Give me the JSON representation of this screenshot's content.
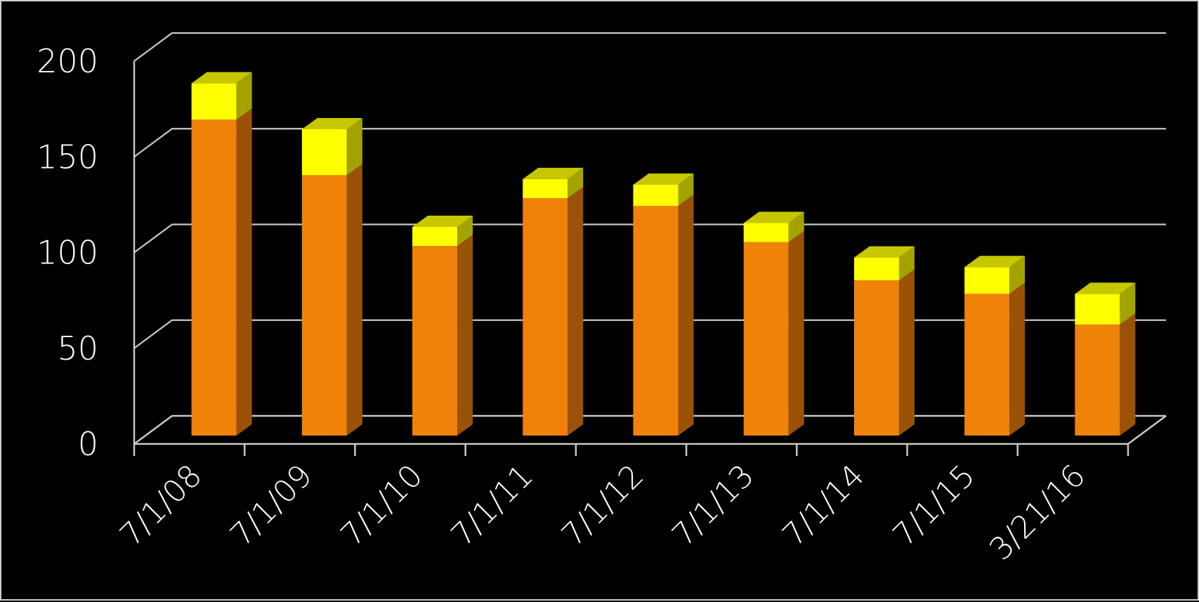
{
  "chart_data": {
    "type": "bar",
    "stacked": true,
    "three_d": true,
    "categories": [
      "7/1/08",
      "7/1/09",
      "7/1/10",
      "7/1/11",
      "7/1/12",
      "7/1/13",
      "7/1/14",
      "7/1/15",
      "3/21/16"
    ],
    "series": [
      {
        "color": "#f0820a",
        "values": [
          165,
          136,
          99,
          124,
          120,
          101,
          81,
          74,
          58
        ]
      },
      {
        "color": "#ffff00",
        "values": [
          19,
          24,
          10,
          10,
          11,
          10,
          12,
          14,
          16
        ]
      }
    ],
    "title": "",
    "xlabel": "",
    "ylabel": "",
    "ylim": [
      0,
      200
    ],
    "yticks": [
      "0",
      "50",
      "100",
      "150",
      "200"
    ],
    "grid": true,
    "legend": "none",
    "background": "#000000",
    "axis_color": "#c8c8c8",
    "text_color": "#ffffff"
  }
}
